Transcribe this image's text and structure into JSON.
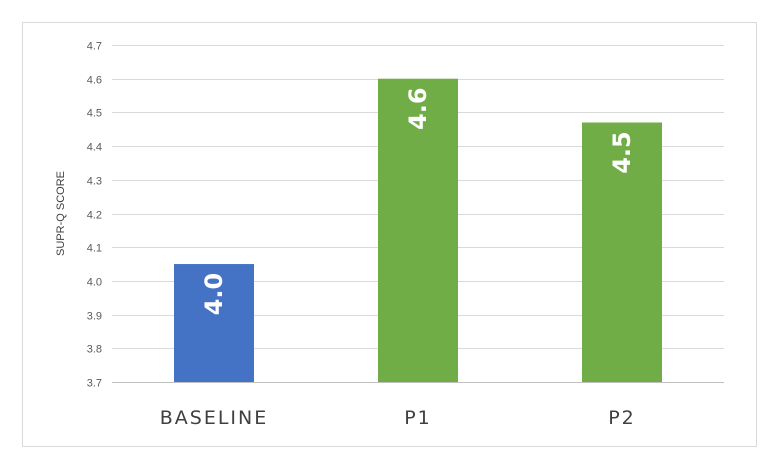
{
  "chart_data": {
    "type": "bar",
    "title": "",
    "xlabel": "",
    "ylabel": "SUPR-Q SCORE",
    "ylim": [
      3.7,
      4.7
    ],
    "ytick_step": 0.1,
    "yticks": [
      "3.7",
      "3.8",
      "3.9",
      "4.0",
      "4.1",
      "4.2",
      "4.3",
      "4.4",
      "4.5",
      "4.6",
      "4.7"
    ],
    "grid": true,
    "categories": [
      "BASELINE",
      "P1",
      "P2"
    ],
    "values": [
      4.05,
      4.6,
      4.47
    ],
    "data_labels": [
      "4.0",
      "4.6",
      "4.5"
    ],
    "colors": [
      "#4472c4",
      "#70ad47",
      "#70ad47"
    ],
    "data_label_color": "#ffffff",
    "data_label_rotation": "vertical"
  }
}
